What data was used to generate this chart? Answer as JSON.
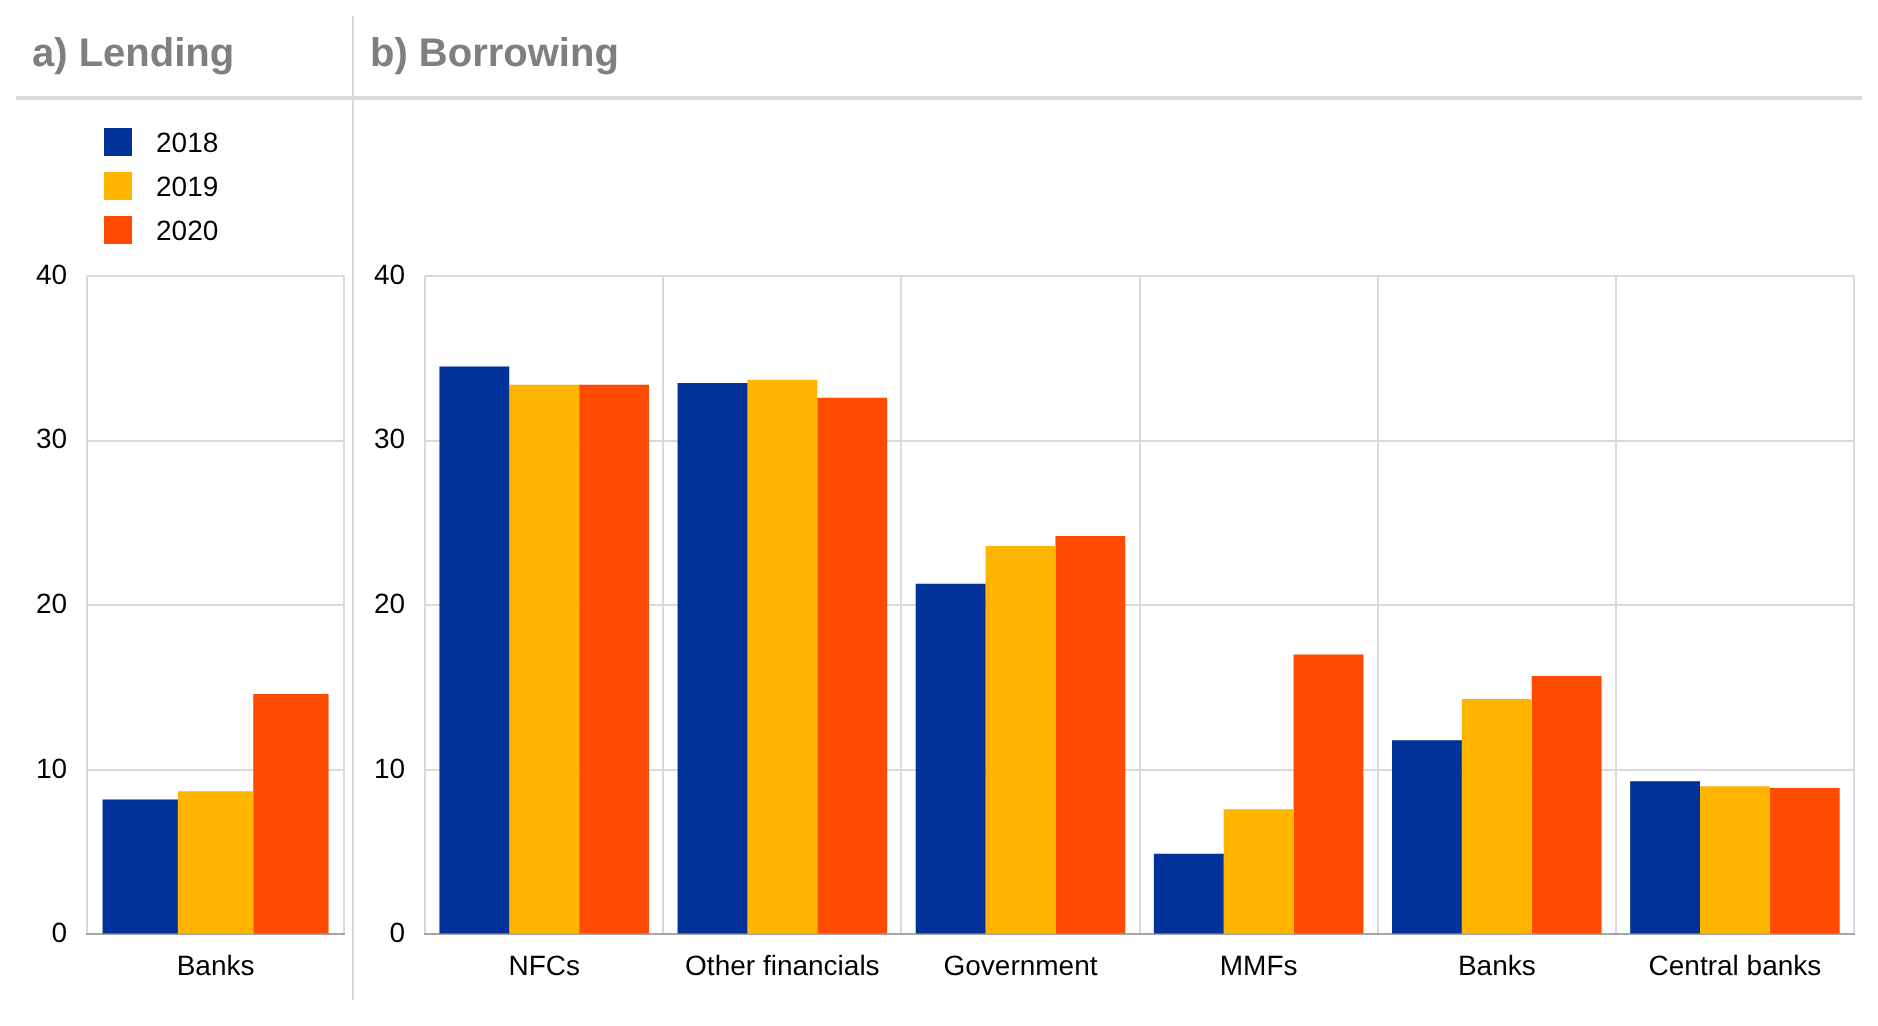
{
  "chart_data": [
    {
      "type": "bar",
      "title": "a) Lending",
      "categories": [
        "Banks"
      ],
      "series": [
        {
          "name": "2018",
          "color": "#003299",
          "values": [
            8.2
          ]
        },
        {
          "name": "2019",
          "color": "#ffb400",
          "values": [
            8.7
          ]
        },
        {
          "name": "2020",
          "color": "#ff4b00",
          "values": [
            14.6
          ]
        }
      ],
      "ylim": [
        0,
        40
      ],
      "yticks": [
        0,
        10,
        20,
        30,
        40
      ],
      "grid": true,
      "legend": "top left"
    },
    {
      "type": "bar",
      "title": "b) Borrowing",
      "categories": [
        "NFCs",
        "Other financials",
        "Government",
        "MMFs",
        "Banks",
        "Central banks"
      ],
      "series": [
        {
          "color": "#003299",
          "values": [
            34.5,
            33.5,
            21.3,
            4.9,
            11.8,
            9.3
          ]
        },
        {
          "color": "#ffb400",
          "values": [
            33.4,
            33.7,
            23.6,
            7.6,
            14.3,
            9.0
          ]
        },
        {
          "color": "#ff4b00",
          "values": [
            33.4,
            32.6,
            24.2,
            17.0,
            15.7,
            8.9
          ]
        }
      ],
      "ylim": [
        0,
        40
      ],
      "yticks": [
        0,
        10,
        20,
        30,
        40
      ],
      "grid": true
    }
  ]
}
